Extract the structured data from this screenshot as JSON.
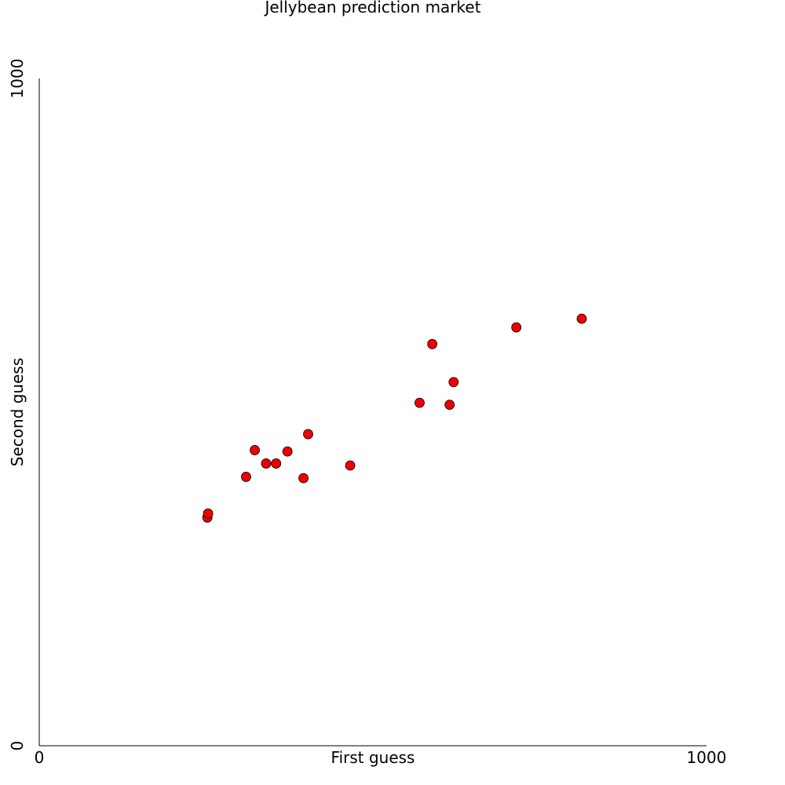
{
  "chart_data": {
    "type": "scatter",
    "title": "Jellybean prediction market",
    "xlabel": "First guess",
    "ylabel": "Second guess",
    "xlim": [
      0,
      1000
    ],
    "ylim": [
      0,
      1000
    ],
    "x_ticks": [
      "0",
      "1000"
    ],
    "y_ticks": [
      "0",
      "1000"
    ],
    "grid": false,
    "legend": "none",
    "marker_color": "#ee0000",
    "marker_edge_color": "#000000",
    "points": [
      {
        "x": 252,
        "y": 342
      },
      {
        "x": 253,
        "y": 348
      },
      {
        "x": 310,
        "y": 403
      },
      {
        "x": 323,
        "y": 443
      },
      {
        "x": 340,
        "y": 423
      },
      {
        "x": 355,
        "y": 423
      },
      {
        "x": 372,
        "y": 441
      },
      {
        "x": 396,
        "y": 401
      },
      {
        "x": 403,
        "y": 467
      },
      {
        "x": 466,
        "y": 420
      },
      {
        "x": 570,
        "y": 514
      },
      {
        "x": 589,
        "y": 602
      },
      {
        "x": 615,
        "y": 511
      },
      {
        "x": 621,
        "y": 545
      },
      {
        "x": 715,
        "y": 627
      },
      {
        "x": 813,
        "y": 640
      }
    ]
  }
}
